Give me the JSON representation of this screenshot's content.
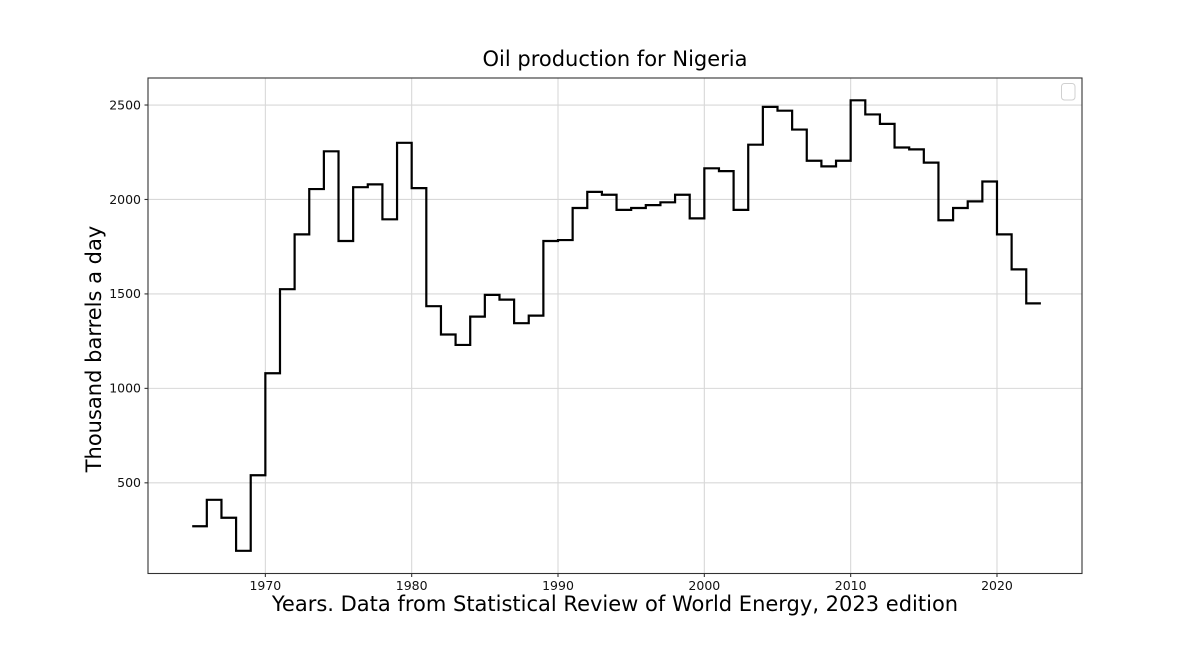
{
  "figure": {
    "title": "Oil production for Nigeria",
    "xlabel": "Years. Data from Statistical Review of World Energy, 2023 edition",
    "ylabel": "Thousand barrels a day"
  },
  "chart_data": {
    "type": "line",
    "step_style": "post",
    "title": "Oil production for Nigeria",
    "xlabel": "Years. Data from Statistical Review of World Energy, 2023 edition",
    "ylabel": "Thousand barrels a day",
    "x": [
      1965,
      1966,
      1967,
      1968,
      1969,
      1970,
      1971,
      1972,
      1973,
      1974,
      1975,
      1976,
      1977,
      1978,
      1979,
      1980,
      1981,
      1982,
      1983,
      1984,
      1985,
      1986,
      1987,
      1988,
      1989,
      1990,
      1991,
      1992,
      1993,
      1994,
      1995,
      1996,
      1997,
      1998,
      1999,
      2000,
      2001,
      2002,
      2003,
      2004,
      2005,
      2006,
      2007,
      2008,
      2009,
      2010,
      2011,
      2012,
      2013,
      2014,
      2015,
      2016,
      2017,
      2018,
      2019,
      2020,
      2021,
      2022
    ],
    "values": [
      270,
      410,
      315,
      140,
      540,
      1080,
      1525,
      1815,
      2055,
      2255,
      1780,
      2065,
      2080,
      1895,
      2300,
      2060,
      1435,
      1285,
      1230,
      1380,
      1495,
      1470,
      1345,
      1385,
      1780,
      1785,
      1955,
      2040,
      2025,
      1945,
      1955,
      1970,
      1985,
      2025,
      1900,
      2165,
      2150,
      1945,
      2290,
      2490,
      2470,
      2370,
      2205,
      2175,
      2205,
      2525,
      2450,
      2400,
      2275,
      2265,
      2195,
      1890,
      1955,
      1990,
      2095,
      1815,
      1630,
      1450
    ],
    "extend_to_x": 2023,
    "xlim": [
      1961.98,
      2025.81
    ],
    "ylim": [
      20,
      2643
    ],
    "xticks": [
      1970,
      1980,
      1990,
      2000,
      2010,
      2020
    ],
    "xtick_labels": [
      "1970",
      "1980",
      "1990",
      "2000",
      "2010",
      "2020"
    ],
    "yticks": [
      500,
      1000,
      1500,
      2000,
      2500
    ],
    "ytick_labels": [
      "500",
      "1000",
      "1500",
      "2000",
      "2500"
    ],
    "grid": true,
    "legend": "empty-box-top-right",
    "line_color": "#000000",
    "grid_color": "#d8d8d8",
    "spine_color": "#333333",
    "legend_border_color": "#d0d0d0"
  }
}
